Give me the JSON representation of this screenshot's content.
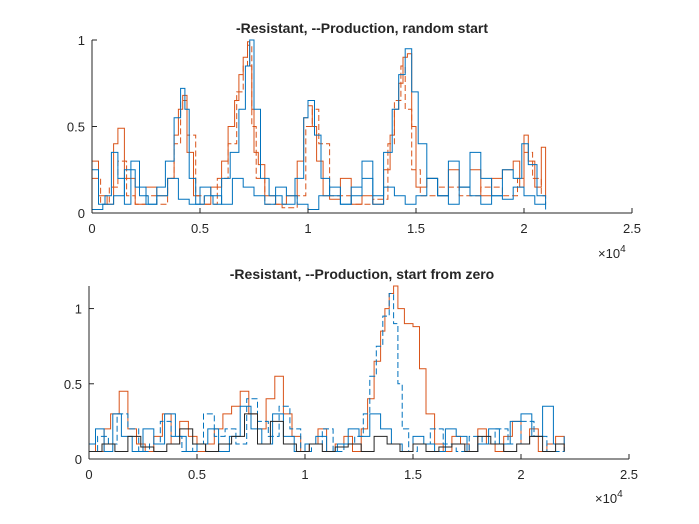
{
  "chart_data": [
    {
      "type": "line",
      "title": "-Resistant, --Production, random start",
      "xlabel": "",
      "ylabel": "",
      "xlim": [
        0,
        25000
      ],
      "ylim": [
        0,
        1
      ],
      "x_ticks": [
        0,
        5000,
        10000,
        15000,
        20000,
        25000
      ],
      "x_tick_labels": [
        "0",
        "0.5",
        "1",
        "1.5",
        "2",
        "2.5"
      ],
      "y_ticks": [
        0,
        0.5,
        1
      ],
      "y_tick_labels": [
        "0",
        "0.5",
        "1"
      ],
      "x_multiplier": {
        "base": "×10",
        "exponent": "4"
      },
      "grid": false,
      "series": [
        {
          "style": "solid",
          "color": "#D95319",
          "x": [
            0,
            300,
            700,
            1000,
            1200,
            1500,
            2000,
            2500,
            3000,
            3500,
            3800,
            4000,
            4200,
            4400,
            4700,
            5000,
            5500,
            6000,
            6300,
            6600,
            6800,
            7000,
            7200,
            7300,
            7400,
            7500,
            7700,
            8000,
            8500,
            9000,
            9500,
            9800,
            10000,
            10200,
            10400,
            10700,
            11000,
            11500,
            12000,
            12500,
            13000,
            13500,
            13800,
            14000,
            14200,
            14400,
            14600,
            14800,
            15000,
            15500,
            16000,
            16500,
            17000,
            17500,
            18000,
            18500,
            19000,
            19500,
            19800,
            20000,
            20200,
            20500,
            20800,
            21000
          ],
          "y": [
            0.3,
            0.1,
            0.05,
            0.4,
            0.49,
            0.2,
            0.05,
            0.15,
            0.1,
            0.2,
            0.45,
            0.6,
            0.68,
            0.35,
            0.1,
            0.05,
            0.15,
            0.3,
            0.5,
            0.65,
            0.8,
            0.9,
            0.99,
            0.85,
            0.6,
            0.35,
            0.28,
            0.1,
            0.05,
            0.1,
            0.3,
            0.55,
            0.62,
            0.5,
            0.3,
            0.1,
            0.08,
            0.2,
            0.05,
            0.1,
            0.05,
            0.25,
            0.45,
            0.6,
            0.75,
            0.9,
            0.92,
            0.5,
            0.15,
            0.2,
            0.1,
            0.25,
            0.15,
            0.25,
            0.1,
            0.2,
            0.25,
            0.3,
            0.15,
            0.45,
            0.3,
            0.15,
            0.38,
            0.1
          ]
        },
        {
          "style": "dashed",
          "color": "#D95319",
          "x": [
            0,
            400,
            800,
            1200,
            1600,
            2000,
            2500,
            3000,
            3500,
            3800,
            4100,
            4400,
            4800,
            5200,
            5800,
            6300,
            6700,
            7000,
            7200,
            7400,
            7600,
            8000,
            8800,
            9500,
            9900,
            10200,
            10500,
            11000,
            12000,
            13000,
            13700,
            14000,
            14300,
            14500,
            14800,
            15200,
            16000,
            17000,
            18000,
            19000,
            19700,
            20000,
            20400,
            20800,
            21000
          ],
          "y": [
            0.2,
            0.05,
            0.15,
            0.3,
            0.1,
            0.05,
            0.1,
            0.05,
            0.2,
            0.4,
            0.65,
            0.45,
            0.1,
            0.05,
            0.2,
            0.4,
            0.7,
            0.85,
            0.97,
            0.5,
            0.2,
            0.05,
            0.03,
            0.1,
            0.5,
            0.6,
            0.4,
            0.1,
            0.05,
            0.08,
            0.4,
            0.65,
            0.85,
            0.6,
            0.25,
            0.1,
            0.15,
            0.1,
            0.15,
            0.1,
            0.2,
            0.35,
            0.2,
            0.1,
            0.05
          ]
        },
        {
          "style": "solid",
          "color": "#0072BD",
          "x": [
            0,
            300,
            600,
            900,
            1200,
            1500,
            1800,
            2200,
            2600,
            3000,
            3400,
            3800,
            4100,
            4300,
            4500,
            4800,
            5200,
            5600,
            6000,
            6400,
            6800,
            7100,
            7300,
            7500,
            7800,
            8200,
            8800,
            9400,
            9800,
            10000,
            10300,
            10600,
            11000,
            11500,
            12000,
            12500,
            13000,
            13500,
            13900,
            14200,
            14500,
            14800,
            15100,
            15500,
            16000,
            16500,
            17000,
            17500,
            18000,
            18500,
            19000,
            19500,
            19900,
            20200,
            20600,
            21000
          ],
          "y": [
            0.25,
            0.05,
            0.1,
            0.35,
            0.2,
            0.05,
            0.3,
            0.1,
            0.05,
            0.15,
            0.3,
            0.55,
            0.72,
            0.6,
            0.2,
            0.05,
            0.1,
            0.05,
            0.2,
            0.35,
            0.6,
            0.85,
            1.0,
            0.6,
            0.2,
            0.1,
            0.05,
            0.2,
            0.55,
            0.65,
            0.45,
            0.2,
            0.1,
            0.05,
            0.15,
            0.3,
            0.1,
            0.35,
            0.6,
            0.8,
            0.95,
            0.7,
            0.4,
            0.2,
            0.1,
            0.3,
            0.15,
            0.35,
            0.2,
            0.1,
            0.25,
            0.2,
            0.4,
            0.28,
            0.1,
            0.05
          ]
        },
        {
          "style": "solid",
          "color": "#0072BD",
          "x": [
            0,
            500,
            1000,
            1500,
            2000,
            2500,
            3000,
            3500,
            4000,
            4500,
            5000,
            5500,
            6000,
            6500,
            7000,
            7500,
            8000,
            8500,
            9000,
            9500,
            10000,
            10500,
            11000,
            11500,
            12000,
            12500,
            13000,
            13500,
            14000,
            14500,
            15000,
            15500,
            16000,
            16500,
            17000,
            17500,
            18000,
            18500,
            19000,
            19500,
            20000,
            20500,
            21000
          ],
          "y": [
            0.02,
            0.05,
            0.1,
            0.25,
            0.15,
            0.05,
            0.1,
            0.2,
            0.08,
            0.05,
            0.15,
            0.1,
            0.05,
            0.2,
            0.15,
            0.1,
            0.05,
            0.15,
            0.1,
            0.05,
            0.02,
            0.1,
            0.15,
            0.05,
            0.1,
            0.2,
            0.05,
            0.15,
            0.1,
            0.05,
            0.1,
            0.2,
            0.1,
            0.05,
            0.15,
            0.1,
            0.05,
            0.1,
            0.08,
            0.15,
            0.1,
            0.05,
            0.02
          ]
        }
      ]
    },
    {
      "type": "line",
      "title": "-Resistant, --Production, start from zero",
      "xlabel": "",
      "ylabel": "",
      "xlim": [
        0,
        25000
      ],
      "ylim": [
        0,
        1.15
      ],
      "x_ticks": [
        0,
        5000,
        10000,
        15000,
        20000,
        25000
      ],
      "x_tick_labels": [
        "0",
        "0.5",
        "1",
        "1.5",
        "2",
        "2.5"
      ],
      "y_ticks": [
        0,
        0.5,
        1
      ],
      "y_tick_labels": [
        "0",
        "0.5",
        "1"
      ],
      "x_multiplier": {
        "base": "×10",
        "exponent": "4"
      },
      "grid": false,
      "series": [
        {
          "style": "solid",
          "color": "#D95319",
          "x": [
            0,
            300,
            700,
            1000,
            1400,
            1800,
            2200,
            2600,
            3000,
            3400,
            3800,
            4200,
            4600,
            5000,
            5400,
            5800,
            6200,
            6600,
            7000,
            7400,
            7800,
            8200,
            8600,
            9000,
            9400,
            9800,
            10200,
            10600,
            11000,
            11400,
            11800,
            12200,
            12600,
            12900,
            13200,
            13500,
            13700,
            13900,
            14100,
            14300,
            14600,
            15000,
            15300,
            15600,
            16000,
            16400,
            16800,
            17200,
            17600,
            18000,
            18400,
            18800,
            19200,
            19600,
            20000,
            20400,
            20800,
            21200,
            21600,
            22000
          ],
          "y": [
            0.1,
            0.05,
            0.2,
            0.3,
            0.45,
            0.2,
            0.1,
            0.05,
            0.15,
            0.3,
            0.1,
            0.25,
            0.15,
            0.05,
            0.1,
            0.2,
            0.3,
            0.35,
            0.45,
            0.3,
            0.2,
            0.4,
            0.55,
            0.3,
            0.15,
            0.05,
            0.1,
            0.2,
            0.05,
            0.1,
            0.15,
            0.05,
            0.2,
            0.4,
            0.65,
            0.85,
            1.0,
            1.1,
            1.15,
            1.0,
            0.9,
            0.88,
            0.6,
            0.3,
            0.1,
            0.05,
            0.15,
            0.1,
            0.05,
            0.2,
            0.1,
            0.05,
            0.15,
            0.25,
            0.1,
            0.2,
            0.05,
            0.1,
            0.15,
            0.05
          ]
        },
        {
          "style": "dashed",
          "color": "#0072BD",
          "x": [
            0,
            400,
            900,
            1300,
            1800,
            2300,
            2800,
            3300,
            3800,
            4300,
            4800,
            5300,
            5800,
            6300,
            6800,
            7300,
            7800,
            8300,
            8800,
            9300,
            9800,
            10300,
            10800,
            11300,
            11800,
            12300,
            12700,
            13000,
            13300,
            13600,
            13900,
            14100,
            14300,
            14500,
            14800,
            15200,
            15800,
            16400,
            17000,
            17600,
            18200,
            18800,
            19400,
            20000,
            20600,
            21200,
            22000
          ],
          "y": [
            0.05,
            0.15,
            0.1,
            0.3,
            0.2,
            0.05,
            0.1,
            0.25,
            0.15,
            0.05,
            0.1,
            0.3,
            0.15,
            0.2,
            0.1,
            0.4,
            0.25,
            0.15,
            0.35,
            0.2,
            0.05,
            0.1,
            0.2,
            0.05,
            0.1,
            0.15,
            0.3,
            0.55,
            0.75,
            0.95,
            1.1,
            0.9,
            0.5,
            0.2,
            0.05,
            0.1,
            0.2,
            0.1,
            0.05,
            0.15,
            0.1,
            0.2,
            0.1,
            0.25,
            0.15,
            0.05,
            0.1
          ]
        },
        {
          "style": "solid",
          "color": "#0072BD",
          "x": [
            0,
            300,
            700,
            1100,
            1500,
            2000,
            2500,
            3000,
            3500,
            4000,
            4500,
            5000,
            5500,
            6000,
            6500,
            7000,
            7500,
            8000,
            8500,
            9000,
            9500,
            10000,
            10500,
            11000,
            11500,
            12000,
            12500,
            13000,
            13500,
            14000,
            14500,
            15000,
            15500,
            16000,
            16500,
            17000,
            17500,
            18000,
            18500,
            19000,
            19500,
            20000,
            20500,
            21000,
            21500,
            22000
          ],
          "y": [
            0.1,
            0.2,
            0.05,
            0.3,
            0.15,
            0.05,
            0.2,
            0.1,
            0.3,
            0.15,
            0.05,
            0.1,
            0.2,
            0.05,
            0.15,
            0.35,
            0.2,
            0.1,
            0.3,
            0.15,
            0.05,
            0.1,
            0.15,
            0.05,
            0.1,
            0.2,
            0.15,
            0.3,
            0.2,
            0.1,
            0.05,
            0.15,
            0.1,
            0.05,
            0.2,
            0.15,
            0.05,
            0.1,
            0.2,
            0.1,
            0.25,
            0.3,
            0.15,
            0.35,
            0.1,
            0.15
          ]
        },
        {
          "style": "solid",
          "color": "#262626",
          "x": [
            0,
            600,
            1200,
            1800,
            2400,
            3000,
            3600,
            4200,
            4800,
            5400,
            6000,
            6600,
            7200,
            7800,
            8400,
            9000,
            9600,
            10200,
            10800,
            11400,
            12000,
            12600,
            13200,
            13800,
            14400,
            15000,
            15600,
            16200,
            16800,
            17400,
            18000,
            18600,
            19200,
            19800,
            20400,
            21000,
            21600,
            22000
          ],
          "y": [
            0.05,
            0.1,
            0.05,
            0.15,
            0.08,
            0.05,
            0.1,
            0.2,
            0.1,
            0.05,
            0.1,
            0.15,
            0.3,
            0.1,
            0.25,
            0.1,
            0.05,
            0.1,
            0.05,
            0.08,
            0.1,
            0.05,
            0.15,
            0.1,
            0.05,
            0.1,
            0.05,
            0.08,
            0.1,
            0.05,
            0.15,
            0.1,
            0.05,
            0.1,
            0.15,
            0.05,
            0.1,
            0.05
          ]
        }
      ]
    }
  ]
}
